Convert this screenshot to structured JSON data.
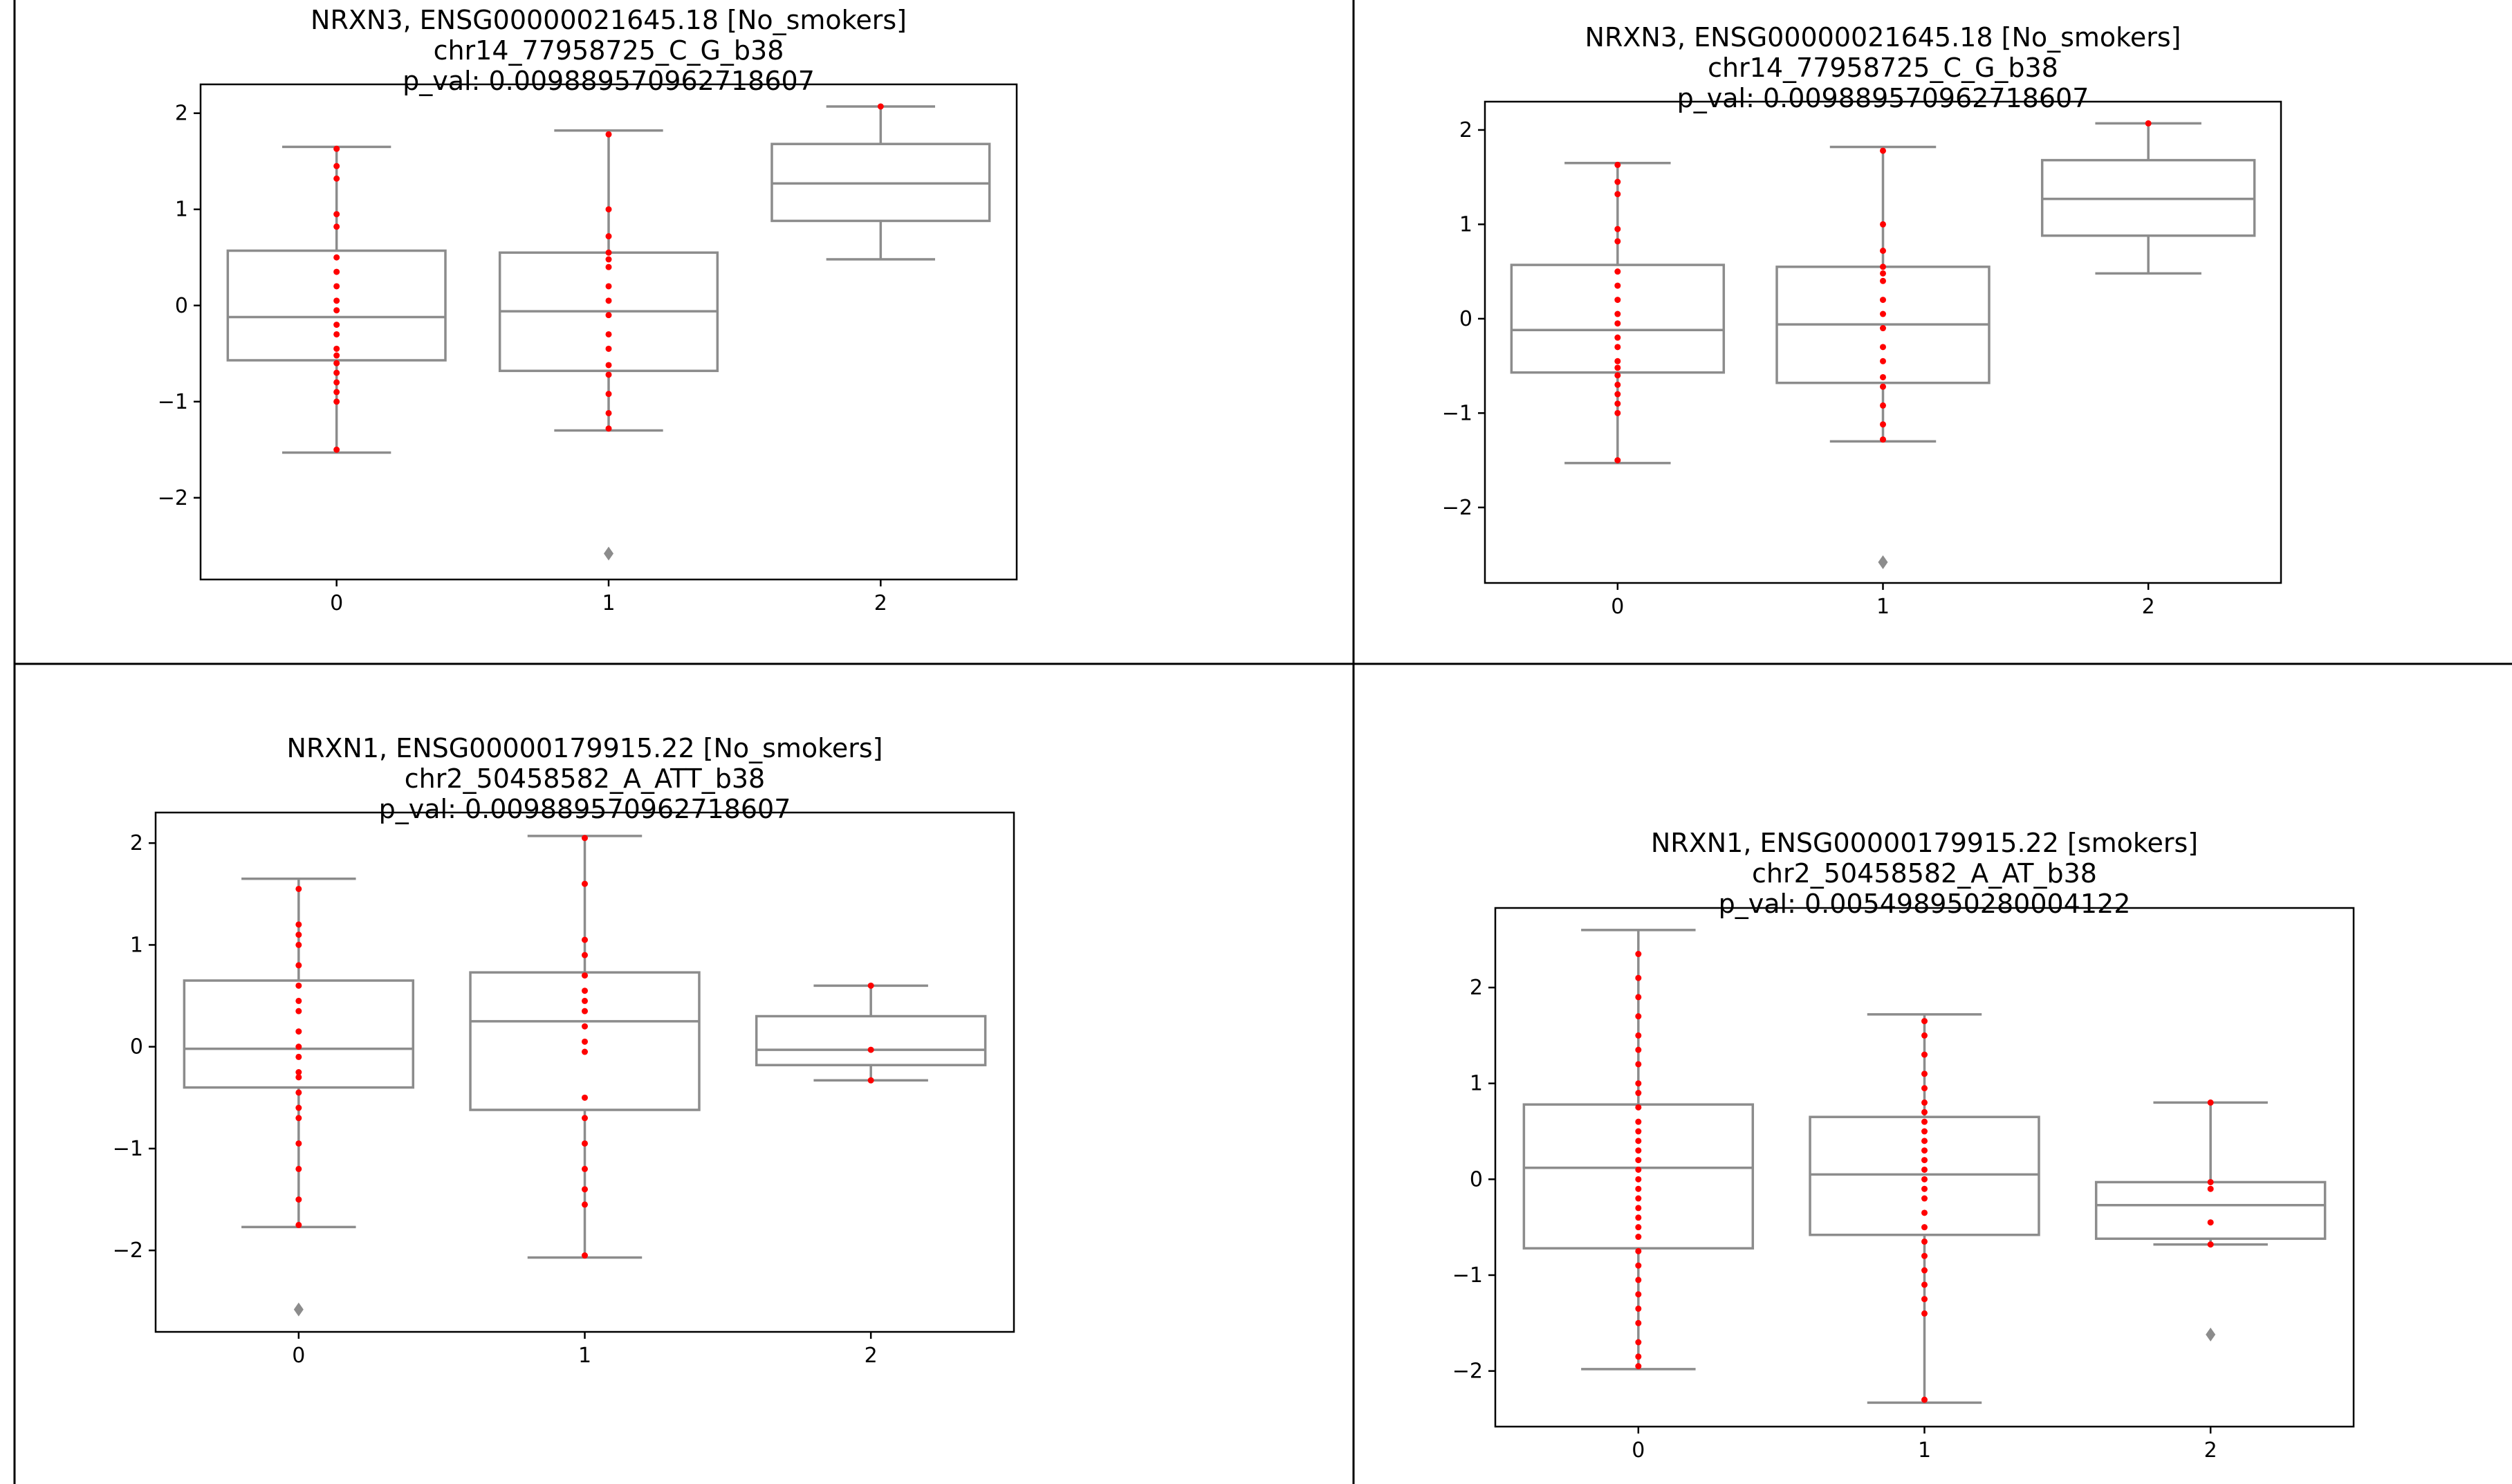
{
  "chart_data": [
    {
      "type": "box",
      "title_lines": [
        "NRXN3, ENSG00000021645.18 [No_smokers]",
        "chr14_77958725_C_G_b38",
        "p_val: 0.009889570962718607"
      ],
      "categories": [
        "0",
        "1",
        "2"
      ],
      "yticks": [
        "2",
        "1",
        "0",
        "−1",
        "−2"
      ],
      "ylim": [
        -2.85,
        2.3
      ],
      "boxes": [
        {
          "whislo": -1.53,
          "q1": -0.57,
          "med": -0.12,
          "q3": 0.57,
          "whishi": 1.65,
          "fliers": []
        },
        {
          "whislo": -1.3,
          "q1": -0.68,
          "med": -0.06,
          "q3": 0.55,
          "whishi": 1.82,
          "fliers": [
            -2.58
          ]
        },
        {
          "whislo": 0.48,
          "q1": 0.88,
          "med": 1.27,
          "q3": 1.68,
          "whishi": 2.07,
          "fliers": []
        }
      ],
      "points": [
        [
          1.63,
          1.45,
          1.32,
          0.95,
          0.82,
          0.5,
          0.35,
          0.2,
          0.05,
          -0.05,
          -0.2,
          -0.3,
          -0.45,
          -0.52,
          -0.6,
          -0.7,
          -0.8,
          -0.9,
          -1.0,
          -1.5
        ],
        [
          1.78,
          1.0,
          0.72,
          0.55,
          0.48,
          0.4,
          0.2,
          0.05,
          -0.1,
          -0.3,
          -0.45,
          -0.62,
          -0.72,
          -0.92,
          -1.12,
          -1.28
        ],
        [
          2.07
        ]
      ]
    },
    {
      "type": "box",
      "title_lines": [
        "NRXN3, ENSG00000021645.18 [No_smokers]",
        "chr14_77958725_C_G_b38",
        "p_val: 0.009889570962718607"
      ],
      "categories": [
        "0",
        "1",
        "2"
      ],
      "yticks": [
        "2",
        "1",
        "0",
        "−1",
        "−2"
      ],
      "ylim": [
        -2.8,
        2.3
      ],
      "boxes": [
        {
          "whislo": -1.53,
          "q1": -0.57,
          "med": -0.12,
          "q3": 0.57,
          "whishi": 1.65,
          "fliers": []
        },
        {
          "whislo": -1.3,
          "q1": -0.68,
          "med": -0.06,
          "q3": 0.55,
          "whishi": 1.82,
          "fliers": [
            -2.58
          ]
        },
        {
          "whislo": 0.48,
          "q1": 0.88,
          "med": 1.27,
          "q3": 1.68,
          "whishi": 2.07,
          "fliers": []
        }
      ],
      "points": [
        [
          1.63,
          1.45,
          1.32,
          0.95,
          0.82,
          0.5,
          0.35,
          0.2,
          0.05,
          -0.05,
          -0.2,
          -0.3,
          -0.45,
          -0.52,
          -0.6,
          -0.7,
          -0.8,
          -0.9,
          -1.0,
          -1.5
        ],
        [
          1.78,
          1.0,
          0.72,
          0.55,
          0.48,
          0.4,
          0.2,
          0.05,
          -0.1,
          -0.3,
          -0.45,
          -0.62,
          -0.72,
          -0.92,
          -1.12,
          -1.28
        ],
        [
          2.07
        ]
      ]
    },
    {
      "type": "box",
      "title_lines": [
        "NRXN1, ENSG00000179915.22 [No_smokers]",
        "chr2_50458582_A_ATT_b38",
        "p_val: 0.009889570962718607"
      ],
      "categories": [
        "0",
        "1",
        "2"
      ],
      "yticks": [
        "2",
        "1",
        "0",
        "−1",
        "−2"
      ],
      "ylim": [
        -2.8,
        2.3
      ],
      "boxes": [
        {
          "whislo": -1.77,
          "q1": -0.4,
          "med": -0.02,
          "q3": 0.65,
          "whishi": 1.65,
          "fliers": [
            -2.58
          ]
        },
        {
          "whislo": -2.07,
          "q1": -0.62,
          "med": 0.25,
          "q3": 0.73,
          "whishi": 2.07,
          "fliers": []
        },
        {
          "whislo": -0.33,
          "q1": -0.18,
          "med": -0.03,
          "q3": 0.3,
          "whishi": 0.6,
          "fliers": []
        }
      ],
      "points": [
        [
          1.55,
          1.2,
          1.1,
          1.0,
          0.8,
          0.6,
          0.45,
          0.35,
          0.15,
          0.0,
          -0.1,
          -0.25,
          -0.3,
          -0.45,
          -0.6,
          -0.7,
          -0.95,
          -1.2,
          -1.5,
          -1.75
        ],
        [
          2.05,
          1.6,
          1.05,
          0.9,
          0.7,
          0.55,
          0.45,
          0.35,
          0.2,
          0.05,
          -0.05,
          -0.5,
          -0.7,
          -0.95,
          -1.2,
          -1.4,
          -1.55,
          -2.05
        ],
        [
          0.6,
          -0.03,
          -0.33
        ]
      ]
    },
    {
      "type": "box",
      "title_lines": [
        "NRXN1, ENSG00000179915.22 [smokers]",
        "chr2_50458582_A_AT_b38",
        "p_val: 0.005498950280004122"
      ],
      "categories": [
        "0",
        "1",
        "2"
      ],
      "yticks": [
        "2",
        "1",
        "0",
        "−1",
        "−2"
      ],
      "ylim": [
        -2.58,
        2.83
      ],
      "boxes": [
        {
          "whislo": -1.98,
          "q1": -0.72,
          "med": 0.12,
          "q3": 0.78,
          "whishi": 2.6,
          "fliers": []
        },
        {
          "whislo": -2.33,
          "q1": -0.58,
          "med": 0.05,
          "q3": 0.65,
          "whishi": 1.72,
          "fliers": []
        },
        {
          "whislo": -0.68,
          "q1": -0.62,
          "med": -0.27,
          "q3": -0.03,
          "whishi": 0.8,
          "fliers": [
            -1.62
          ]
        }
      ],
      "points": [
        [
          2.35,
          2.1,
          1.9,
          1.7,
          1.5,
          1.35,
          1.2,
          1.0,
          0.9,
          0.75,
          0.6,
          0.5,
          0.4,
          0.3,
          0.2,
          0.1,
          0.0,
          -0.1,
          -0.2,
          -0.3,
          -0.4,
          -0.5,
          -0.6,
          -0.75,
          -0.9,
          -1.05,
          -1.2,
          -1.35,
          -1.5,
          -1.7,
          -1.85,
          -1.95
        ],
        [
          1.65,
          1.5,
          1.3,
          1.1,
          0.95,
          0.8,
          0.7,
          0.6,
          0.5,
          0.4,
          0.3,
          0.2,
          0.1,
          0.0,
          -0.1,
          -0.2,
          -0.35,
          -0.5,
          -0.65,
          -0.8,
          -0.95,
          -1.1,
          -1.25,
          -1.4,
          -2.3
        ],
        [
          0.8,
          -0.03,
          -0.1,
          -0.45,
          -0.68
        ]
      ]
    }
  ]
}
